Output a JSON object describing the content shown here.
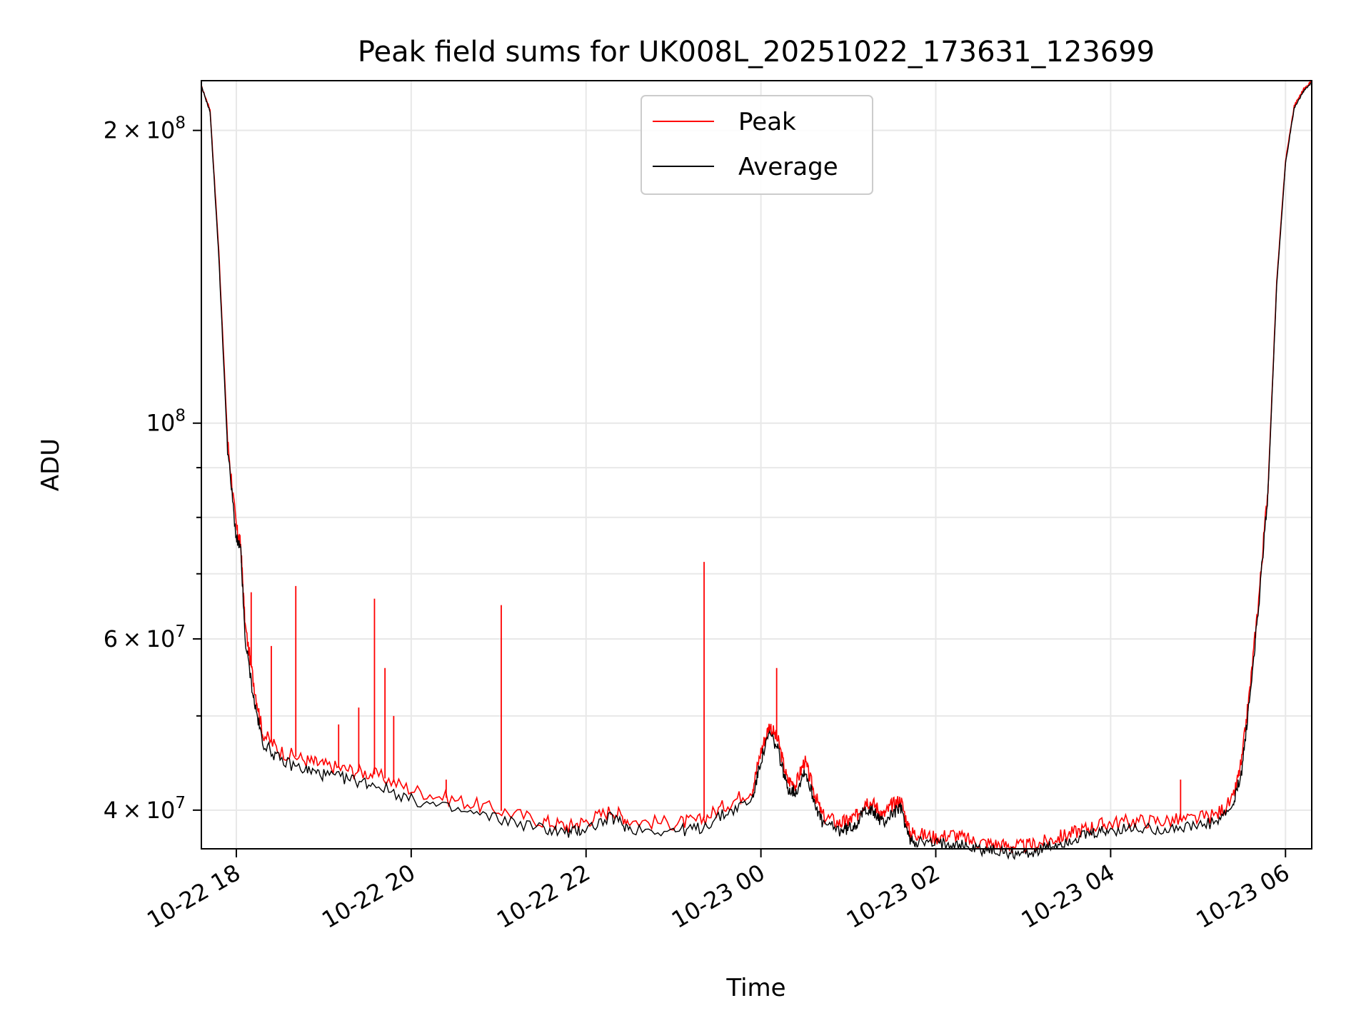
{
  "chart_data": {
    "type": "line",
    "title": "Peak field sums for UK008L_20251022_173631_123699",
    "xlabel": "Time",
    "ylabel": "ADU",
    "yscale": "log",
    "ylim": [
      36500000,
      225000000
    ],
    "xlim_hours_from_1022_0000": [
      17.6,
      30.3
    ],
    "x_unit": "hours since 10-22 00:00",
    "grid": true,
    "legend_position": "upper center",
    "x_ticks": [
      {
        "value": 18,
        "label": "10-22 18"
      },
      {
        "value": 20,
        "label": "10-22 20"
      },
      {
        "value": 22,
        "label": "10-22 22"
      },
      {
        "value": 24,
        "label": "10-23 00"
      },
      {
        "value": 26,
        "label": "10-23 02"
      },
      {
        "value": 28,
        "label": "10-23 04"
      },
      {
        "value": 30,
        "label": "10-23 06"
      }
    ],
    "y_major_ticks": [
      {
        "value": 40000000,
        "mant": "4 × 10",
        "exp": "7"
      },
      {
        "value": 60000000,
        "mant": "6 × 10",
        "exp": "7"
      },
      {
        "value": 100000000,
        "mant": "10",
        "exp": "8"
      },
      {
        "value": 200000000,
        "mant": "2 × 10",
        "exp": "8"
      }
    ],
    "y_minor_ticks": [
      50000000,
      70000000,
      80000000,
      90000000
    ],
    "series": [
      {
        "name": "Peak",
        "color": "#ff0000",
        "x": [
          17.6,
          17.7,
          17.8,
          17.9,
          18.0,
          18.05,
          18.1,
          18.2,
          18.3,
          18.5,
          18.8,
          19.0,
          19.3,
          19.6,
          20.0,
          20.5,
          21.0,
          21.5,
          21.8,
          22.0,
          22.3,
          22.5,
          23.0,
          23.3,
          23.6,
          23.9,
          24.0,
          24.1,
          24.2,
          24.3,
          24.4,
          24.5,
          24.6,
          24.7,
          24.9,
          25.0,
          25.1,
          25.2,
          25.3,
          25.4,
          25.5,
          25.6,
          25.7,
          25.8,
          26.0,
          26.2,
          26.4,
          26.6,
          26.8,
          27.0,
          27.2,
          27.4,
          27.6,
          27.8,
          28.0,
          28.3,
          28.6,
          28.9,
          29.2,
          29.4,
          29.5,
          29.6,
          29.7,
          29.8,
          29.9,
          30.0,
          30.1,
          30.2,
          30.3
        ],
        "y": [
          222000000,
          210000000,
          150000000,
          96000000,
          78000000,
          75000000,
          62000000,
          54000000,
          48000000,
          46000000,
          45000000,
          44500000,
          44000000,
          43500000,
          42000000,
          41000000,
          40000000,
          39000000,
          38500000,
          39000000,
          40000000,
          39000000,
          38800000,
          39000000,
          40500000,
          42000000,
          46000000,
          49000000,
          47000000,
          43000000,
          42500000,
          45000000,
          42000000,
          39500000,
          38800000,
          39000000,
          39500000,
          41000000,
          40500000,
          39500000,
          40500000,
          41000000,
          38000000,
          37800000,
          37500000,
          37800000,
          37200000,
          37000000,
          36800000,
          36700000,
          37000000,
          37500000,
          38000000,
          38500000,
          38800000,
          39000000,
          39000000,
          39100000,
          39500000,
          41000000,
          45000000,
          54000000,
          67000000,
          86000000,
          140000000,
          186000000,
          212000000,
          220000000,
          225000000
        ]
      },
      {
        "name": "Average",
        "color": "#000000",
        "x": [
          17.6,
          17.7,
          17.8,
          17.9,
          18.0,
          18.05,
          18.1,
          18.2,
          18.3,
          18.5,
          18.8,
          19.0,
          19.3,
          19.6,
          20.0,
          20.5,
          21.0,
          21.5,
          21.8,
          22.0,
          22.3,
          22.5,
          23.0,
          23.3,
          23.6,
          23.9,
          24.0,
          24.1,
          24.2,
          24.3,
          24.4,
          24.5,
          24.6,
          24.7,
          24.9,
          25.0,
          25.1,
          25.2,
          25.3,
          25.4,
          25.5,
          25.6,
          25.7,
          25.8,
          26.0,
          26.2,
          26.4,
          26.6,
          26.8,
          27.0,
          27.2,
          27.4,
          27.6,
          27.8,
          28.0,
          28.3,
          28.6,
          28.9,
          29.2,
          29.4,
          29.5,
          29.6,
          29.7,
          29.8,
          29.9,
          30.0,
          30.1,
          30.2,
          30.3
        ],
        "y": [
          222000000,
          209000000,
          148000000,
          94000000,
          76000000,
          74000000,
          60000000,
          52000000,
          47000000,
          45000000,
          44000000,
          43500000,
          43000000,
          42500000,
          41000000,
          40000000,
          39200000,
          38300000,
          37900000,
          38300000,
          39300000,
          38300000,
          38100000,
          38300000,
          39700000,
          41000000,
          45000000,
          48000000,
          46000000,
          42200000,
          41700000,
          44000000,
          41200000,
          38800000,
          38100000,
          38300000,
          38800000,
          40200000,
          39700000,
          38800000,
          39700000,
          40200000,
          37300000,
          37100000,
          36900000,
          37100000,
          36600000,
          36400000,
          36200000,
          36100000,
          36400000,
          36900000,
          37400000,
          37800000,
          38100000,
          38300000,
          38300000,
          38400000,
          38800000,
          40300000,
          44000000,
          53000000,
          66000000,
          85000000,
          139000000,
          185000000,
          211000000,
          219000000,
          224000000
        ]
      }
    ],
    "peak_spikes": [
      {
        "x": 18.17,
        "y": 67000000
      },
      {
        "x": 18.4,
        "y": 59000000
      },
      {
        "x": 18.68,
        "y": 68000000
      },
      {
        "x": 19.17,
        "y": 49000000
      },
      {
        "x": 19.4,
        "y": 51000000
      },
      {
        "x": 19.58,
        "y": 66000000
      },
      {
        "x": 19.7,
        "y": 56000000
      },
      {
        "x": 19.8,
        "y": 50000000
      },
      {
        "x": 20.4,
        "y": 43000000
      },
      {
        "x": 21.03,
        "y": 65000000
      },
      {
        "x": 23.35,
        "y": 72000000
      },
      {
        "x": 24.18,
        "y": 56000000
      },
      {
        "x": 28.8,
        "y": 43000000
      }
    ]
  }
}
